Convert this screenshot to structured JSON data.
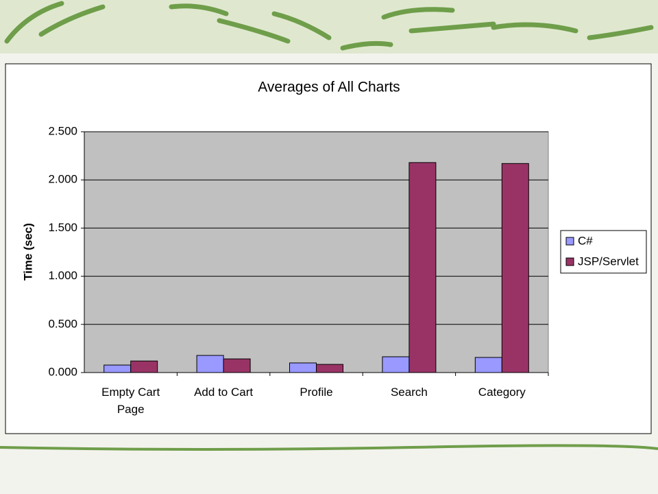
{
  "chart_data": {
    "type": "bar",
    "title": "Averages of All Charts",
    "y_label": "Time (sec)",
    "categories": [
      "Empty Cart Page",
      "Add to Cart",
      "Profile",
      "Search",
      "Category"
    ],
    "series": [
      {
        "name": "C#",
        "color": "#9999ff",
        "values": [
          0.078,
          0.178,
          0.1,
          0.164,
          0.157
        ]
      },
      {
        "name": "JSP/Servlet",
        "color": "#993366",
        "values": [
          0.12,
          0.142,
          0.085,
          2.18,
          2.17
        ]
      }
    ],
    "ylim": [
      0,
      2.5
    ],
    "yticks": [
      {
        "value": 0,
        "label": "0.000"
      },
      {
        "value": 0.5,
        "label": "0.500"
      },
      {
        "value": 1,
        "label": "1.000"
      },
      {
        "value": 1.5,
        "label": "1.500"
      },
      {
        "value": 2,
        "label": "2.000"
      },
      {
        "value": 2.5,
        "label": "2.500"
      }
    ],
    "grid": true,
    "legend": "right"
  }
}
